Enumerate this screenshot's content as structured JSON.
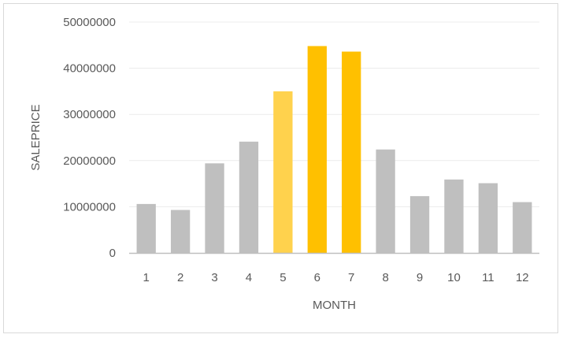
{
  "chart_data": {
    "type": "bar",
    "xlabel": "MONTH",
    "ylabel": "SALEPRICE",
    "categories": [
      "1",
      "2",
      "3",
      "4",
      "5",
      "6",
      "7",
      "8",
      "9",
      "10",
      "11",
      "12"
    ],
    "values": [
      10600000,
      9300000,
      19400000,
      24100000,
      35000000,
      44800000,
      43600000,
      22400000,
      12300000,
      15900000,
      15100000,
      11000000
    ],
    "ylim": [
      0,
      50000000
    ],
    "yticks": [
      "0",
      "10000000",
      "20000000",
      "30000000",
      "40000000",
      "50000000"
    ],
    "yticks_values": [
      0,
      10000000,
      20000000,
      30000000,
      40000000,
      50000000
    ],
    "grid": true,
    "legend": "none",
    "bar_colors": [
      "#bfbfbf",
      "#bfbfbf",
      "#bfbfbf",
      "#bfbfbf",
      "#ffd24d",
      "#ffc000",
      "#ffc000",
      "#bfbfbf",
      "#bfbfbf",
      "#bfbfbf",
      "#bfbfbf",
      "#bfbfbf"
    ],
    "gridline_color": "#ececec",
    "axis_color": "#bfbfbf"
  }
}
